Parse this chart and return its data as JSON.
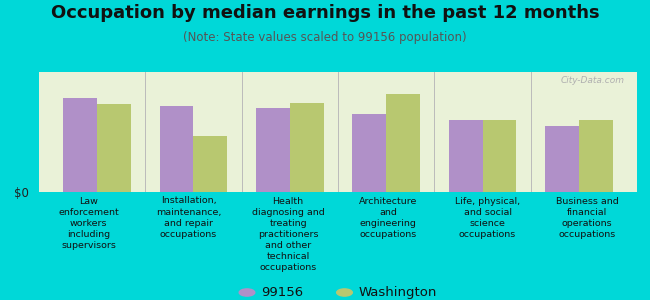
{
  "title": "Occupation by median earnings in the past 12 months",
  "subtitle": "(Note: State values scaled to 99156 population)",
  "bg_outer": "#00d8d8",
  "bg_chart": "#eaf2d8",
  "categories": [
    "Law\nenforcement\nworkers\nincluding\nsupervisors",
    "Installation,\nmaintenance,\nand repair\noccupations",
    "Health\ndiagnosing and\ntreating\npractitioners\nand other\ntechnical\noccupations",
    "Architecture\nand\nengineering\noccupations",
    "Life, physical,\nand social\nscience\noccupations",
    "Business and\nfinancial\noperations\noccupations"
  ],
  "vals_local": [
    0.78,
    0.72,
    0.7,
    0.65,
    0.6,
    0.55
  ],
  "vals_state": [
    0.73,
    0.47,
    0.74,
    0.82,
    0.6,
    0.6
  ],
  "color_local": "#b090c8",
  "color_state": "#b8c870",
  "legend_label_local": "99156",
  "legend_label_state": "Washington",
  "y0_label": "$0",
  "bar_width": 0.35,
  "watermark": "City-Data.com",
  "title_fontsize": 13,
  "subtitle_fontsize": 8.5,
  "label_fontsize": 6.8,
  "legend_fontsize": 9.5
}
